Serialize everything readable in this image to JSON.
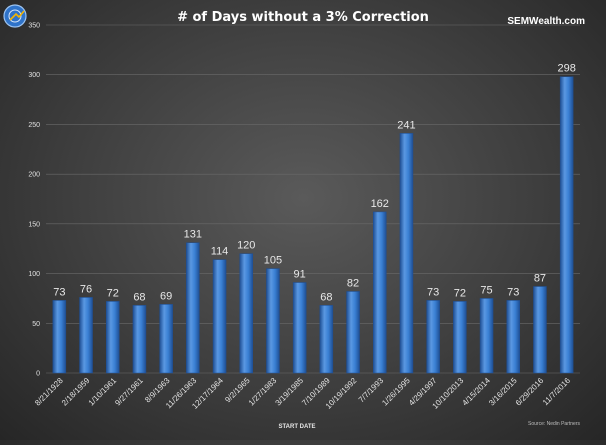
{
  "header": {
    "title": "# of Days without a 3% Correction",
    "brand": "SEMWealth.com"
  },
  "logo": {
    "icon": "semwealth-logo-icon"
  },
  "colors": {
    "bar": "#2f73c9",
    "bar_light": "#5a98e2",
    "bar_dark": "#1f4f94",
    "grid": "#6a6a6a"
  },
  "chart_data": {
    "type": "bar",
    "title": "# of Days without a 3% Correction",
    "xlabel": "START DATE",
    "ylabel": "",
    "ylim": [
      0,
      350
    ],
    "yticks": [
      0,
      50,
      100,
      150,
      200,
      250,
      300,
      350
    ],
    "grid": true,
    "categories": [
      "8/21/1928",
      "2/18/1959",
      "1/10/1961",
      "9/27/1961",
      "8/9/1963",
      "11/26/1963",
      "12/17/1964",
      "9/2/1965",
      "1/27/1983",
      "3/19/1985",
      "7/10/1989",
      "10/19/1992",
      "7/7/1993",
      "1/26/1995",
      "4/29/1997",
      "10/10/2013",
      "4/15/2014",
      "3/16/2015",
      "6/29/2016",
      "11/7/2016"
    ],
    "values": [
      73,
      76,
      72,
      68,
      69,
      131,
      114,
      120,
      105,
      91,
      68,
      82,
      162,
      241,
      73,
      72,
      75,
      73,
      87,
      298
    ],
    "source": "Source: Nedin Partners"
  }
}
